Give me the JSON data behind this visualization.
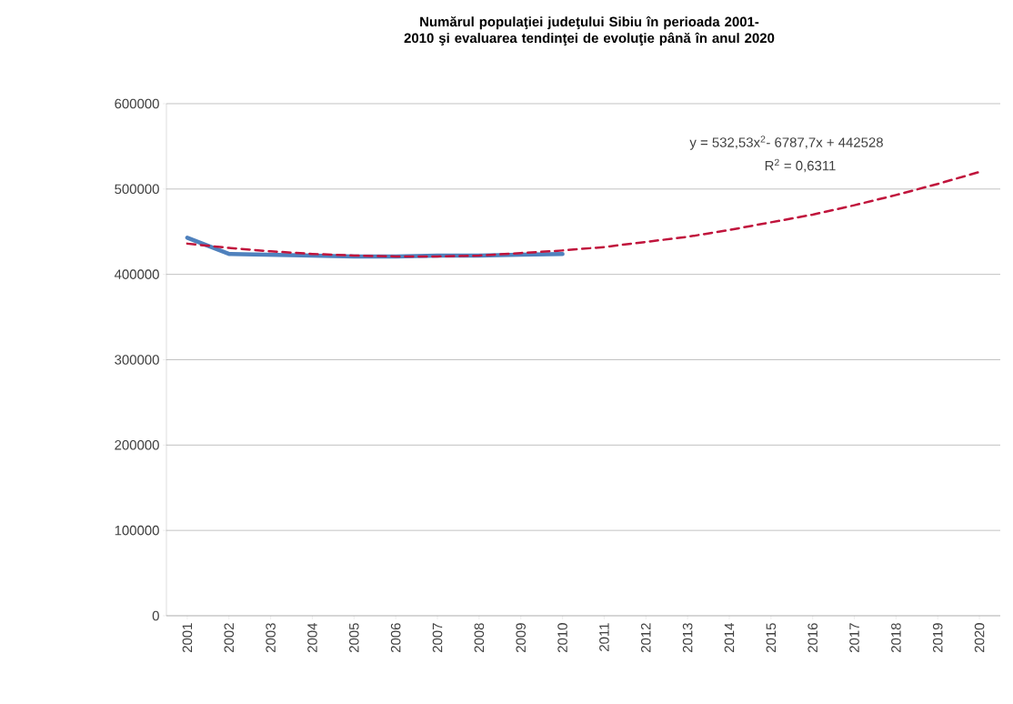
{
  "chart_data": {
    "type": "line",
    "title": "Numărul populaţiei judeţului Sibiu în perioada 2001-2010 şi evaluarea tendinţei de evoluţie până în anul 2020",
    "categories": [
      "2001",
      "2002",
      "2003",
      "2004",
      "2005",
      "2006",
      "2007",
      "2008",
      "2009",
      "2010",
      "2011",
      "2012",
      "2013",
      "2014",
      "2015",
      "2016",
      "2017",
      "2018",
      "2019",
      "2020"
    ],
    "series": [
      {
        "color": "#4f81bd",
        "line_style": "solid",
        "values": [
          443000,
          424000,
          423000,
          422000,
          421000,
          421000,
          422000,
          422000,
          423000,
          424000,
          null,
          null,
          null,
          null,
          null,
          null,
          null,
          null,
          null,
          null
        ]
      },
      {
        "color": "#c0143c",
        "line_style": "dashed",
        "values": [
          436000,
          431000,
          427000,
          424000,
          422000,
          421000,
          421000,
          422000,
          425000,
          428000,
          432000,
          438000,
          444000,
          452000,
          461000,
          470000,
          481000,
          493000,
          506000,
          520000
        ]
      }
    ],
    "ylim": [
      0,
      600000
    ],
    "yticks": [
      0,
      100000,
      200000,
      300000,
      400000,
      500000,
      600000
    ],
    "grid": "y",
    "marker": "none",
    "annotations": [
      "y = 532,53x$^{2}$- 6787,7x + 442528",
      "R$^{2}$ = 0,6311"
    ]
  }
}
